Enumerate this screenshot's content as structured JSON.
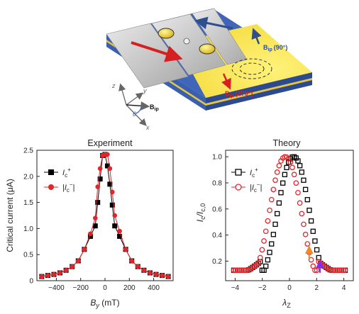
{
  "device": {
    "axis_x": "x",
    "axis_y": "y",
    "axis_z": "z",
    "angle": "θ",
    "field_vec": "B",
    "field_sub": "ip",
    "field_90": "B",
    "field_90_sub": "ip",
    "field_90_angle": "(90°)",
    "field_270": "B",
    "field_270_sub": "ip",
    "field_270_angle": "(270°)",
    "colors": {
      "substrate_yellow": "#f7e64a",
      "side_blue": "#3a5fb0",
      "plate": "#c8c8c8",
      "red_arrow": "#d42020",
      "blue_arrow": "#2f4f8f"
    }
  },
  "chart_data": [
    {
      "type": "line",
      "title": "Experiment",
      "xlabel_main": "B",
      "xlabel_sub": "y",
      "xlabel_unit": " (mT)",
      "ylabel": "Critical current (μA)",
      "xlim": [
        -560,
        560
      ],
      "ylim": [
        0,
        2.5
      ],
      "xticks": [
        -400,
        -200,
        0,
        200,
        400
      ],
      "yticks": [
        0,
        0.5,
        1.0,
        1.5,
        2.0,
        2.5
      ],
      "ytick_labels": [
        "0",
        "0.5",
        "1.0",
        "1.5",
        "2.0",
        "2.5"
      ],
      "legend_position": "upper-left",
      "series": [
        {
          "name_main": "I",
          "name_sub": "c",
          "name_sup": "+",
          "color": "#000000",
          "marker": "square",
          "x": [
            -520,
            -470,
            -420,
            -370,
            -320,
            -270,
            -220,
            -170,
            -120,
            -80,
            -60,
            -40,
            -20,
            0,
            20,
            40,
            60,
            80,
            120,
            170,
            220,
            270,
            320,
            370,
            420,
            470,
            520
          ],
          "y": [
            0.08,
            0.1,
            0.12,
            0.15,
            0.2,
            0.27,
            0.38,
            0.6,
            0.85,
            1.05,
            1.5,
            1.95,
            2.4,
            2.42,
            2.2,
            1.85,
            1.45,
            1.05,
            0.85,
            0.6,
            0.38,
            0.27,
            0.2,
            0.15,
            0.12,
            0.1,
            0.08
          ]
        },
        {
          "name_main": "|I",
          "name_sub": "c",
          "name_sup": "−",
          "name_close": "|",
          "color": "#e0262b",
          "marker": "circle",
          "x": [
            -520,
            -470,
            -420,
            -370,
            -320,
            -270,
            -220,
            -170,
            -120,
            -80,
            -60,
            -40,
            -20,
            0,
            20,
            40,
            60,
            80,
            120,
            170,
            220,
            270,
            320,
            370,
            420,
            470,
            520
          ],
          "y": [
            0.08,
            0.1,
            0.12,
            0.15,
            0.2,
            0.27,
            0.38,
            0.6,
            0.9,
            1.2,
            1.8,
            2.15,
            2.4,
            2.42,
            2.42,
            2.15,
            1.7,
            1.25,
            0.95,
            0.6,
            0.38,
            0.27,
            0.2,
            0.15,
            0.12,
            0.1,
            0.08
          ]
        }
      ]
    },
    {
      "type": "line",
      "title": "Theory",
      "xlabel_main": "λ",
      "xlabel_sub": "Z",
      "ylabel_main": "I",
      "ylabel_sub1": "c",
      "ylabel_mid": "/I",
      "ylabel_sub2": "c,0",
      "xlim": [
        -4.7,
        4.7
      ],
      "ylim": [
        0.05,
        1.05
      ],
      "xticks": [
        -4,
        -2,
        0,
        2,
        4
      ],
      "yticks": [
        0.2,
        0.4,
        0.6,
        0.8,
        1.0
      ],
      "ytick_labels": [
        "0.2",
        "0.4",
        "0.6",
        "0.8",
        "1.0"
      ],
      "legend_position": "upper-left",
      "arrows": [
        {
          "x": 1.45,
          "y_tip": 0.31,
          "y_tail": 0.22,
          "color": "#f08a24"
        },
        {
          "x": 2.25,
          "y_tip": 0.2,
          "y_tail": 0.11,
          "color": "#8a2be2"
        }
      ],
      "series": [
        {
          "name_main": "I",
          "name_sub": "c",
          "name_sup": "+",
          "color": "#000000",
          "marker": "square-open",
          "curve": {
            "center": 0.3,
            "width": 1.55,
            "exponent": 2.2,
            "tail_amp": 0.2,
            "tail_decay": 2.2,
            "cut": 2.1,
            "side": "right"
          },
          "x_range": [
            -4.1,
            4.1
          ],
          "n_points": 60
        },
        {
          "name_main": "|I",
          "name_sub": "c",
          "name_sup": "−",
          "name_close": "|",
          "color": "#e0262b",
          "marker": "circle-open",
          "curve": {
            "center": -0.3,
            "width": 1.55,
            "exponent": 2.2,
            "tail_amp": 0.2,
            "tail_decay": 2.2,
            "cut": 2.1,
            "side": "left"
          },
          "x_range": [
            -4.1,
            4.1
          ],
          "n_points": 60
        }
      ]
    }
  ]
}
